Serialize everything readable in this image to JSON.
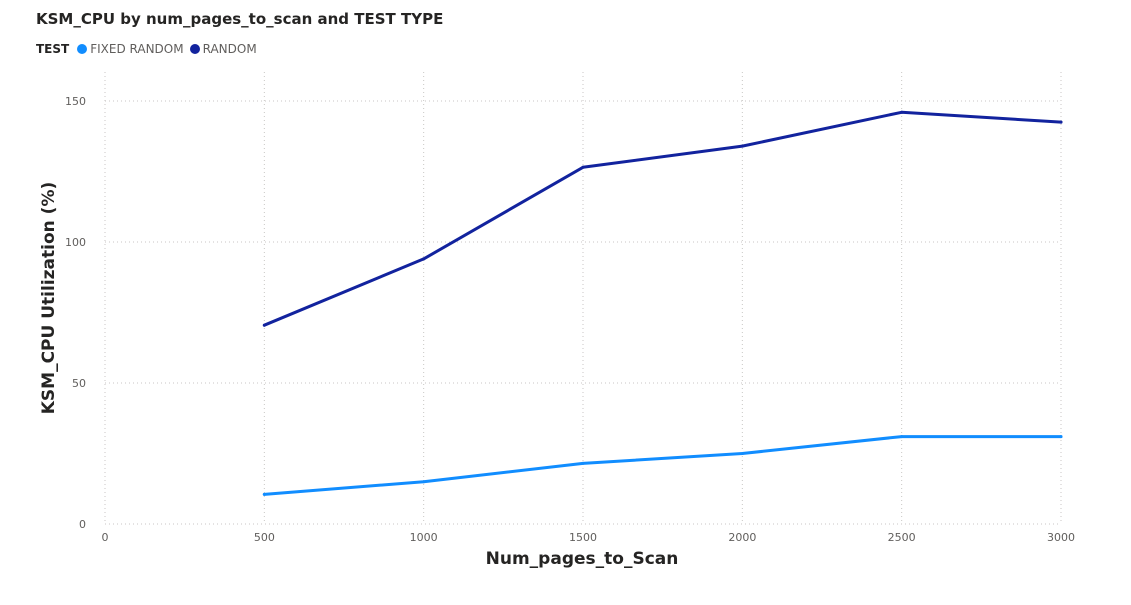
{
  "chart_data": {
    "type": "line",
    "title": "KSM_CPU by num_pages_to_scan and TEST TYPE",
    "legend_title": "TEST",
    "legend_position": "top-left",
    "xlabel": "Num_pages_to_Scan",
    "ylabel": "KSM_CPU Utilization (%)",
    "xlim": [
      0,
      3000
    ],
    "ylim": [
      0,
      150
    ],
    "x_ticks": [
      0,
      500,
      1000,
      1500,
      2000,
      2500,
      3000
    ],
    "y_ticks": [
      0,
      50,
      100,
      150
    ],
    "grid": true,
    "x": [
      500,
      1000,
      1500,
      2000,
      2500,
      3000
    ],
    "series": [
      {
        "name": "FIXED RANDOM",
        "color": "#118dff",
        "values": [
          10.5,
          15,
          21.5,
          25,
          31,
          31
        ]
      },
      {
        "name": "RANDOM",
        "color": "#12239e",
        "values": [
          70.5,
          94,
          126.5,
          134,
          146,
          142.5
        ]
      }
    ]
  }
}
